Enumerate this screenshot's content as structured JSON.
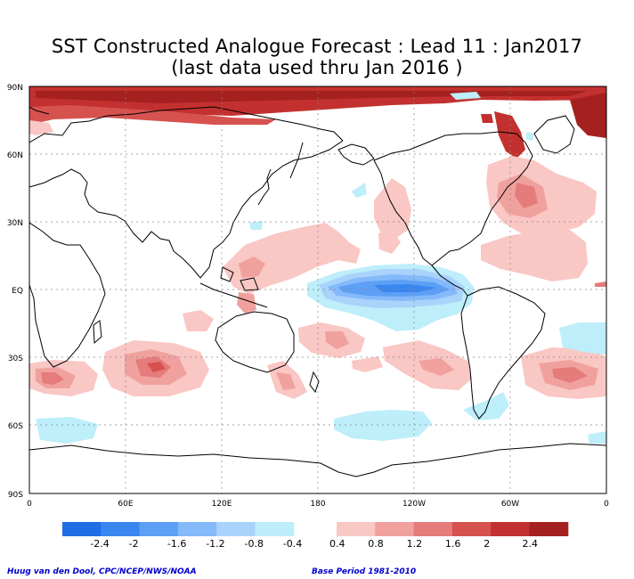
{
  "title": "SST Constructed Analogue Forecast : Lead 11 : Jan2017",
  "subtitle": "(last data used thru Jan 2016 )",
  "lat_labels": [
    "90N",
    "60N",
    "30N",
    "EQ",
    "30S",
    "60S",
    "90S"
  ],
  "lon_labels": [
    "0",
    "60E",
    "120E",
    "180",
    "120W",
    "60W",
    "0"
  ],
  "colorbar": {
    "negative_labels": [
      "-2.4",
      "-2",
      "-1.6",
      "-1.2",
      "-0.8",
      "-0.4"
    ],
    "positive_labels": [
      "0.4",
      "0.8",
      "1.2",
      "1.6",
      "2",
      "2.4"
    ],
    "negative_colors": [
      "#1f6ee6",
      "#3a86f0",
      "#5c9ff5",
      "#84b9fa",
      "#a9d3fb",
      "#bdeefa"
    ],
    "positive_colors": [
      "#f9c7c4",
      "#f0a19e",
      "#e57b7b",
      "#d6524f",
      "#c2312f",
      "#a5211f"
    ]
  },
  "credit_left": "Huug van den Dool, CPC/NCEP/NWS/NOAA",
  "credit_right": "Base Period 1981-2010"
}
